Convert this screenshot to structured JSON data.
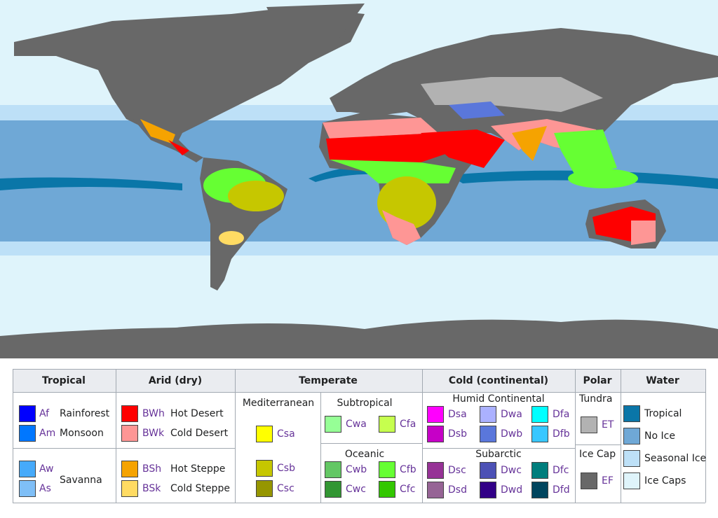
{
  "legend": {
    "tropical": {
      "title": "Tropical",
      "items": [
        {
          "code": "Af",
          "label": "Rainforest",
          "color": "#0000fe"
        },
        {
          "code": "Am",
          "label": "Monsoon",
          "color": "#0077ff"
        },
        {
          "code": "Aw",
          "color": "#46aafa"
        },
        {
          "code": "As",
          "color": "#7fbff7"
        }
      ],
      "savanna": "Savanna"
    },
    "arid": {
      "title": "Arid (dry)",
      "items": [
        {
          "code": "BWh",
          "label": "Hot Desert",
          "color": "#fe0000"
        },
        {
          "code": "BWk",
          "label": "Cold Desert",
          "color": "#fe9695"
        },
        {
          "code": "BSh",
          "label": "Hot Steppe",
          "color": "#f5a301"
        },
        {
          "code": "BSk",
          "label": "Cold Steppe",
          "color": "#ffdb63"
        }
      ]
    },
    "temperate": {
      "title": "Temperate",
      "mediterranean": {
        "title": "Mediterranean",
        "items": [
          {
            "code": "Csa",
            "color": "#ffff00"
          },
          {
            "code": "Csb",
            "color": "#c6c700"
          },
          {
            "code": "Csc",
            "color": "#969600"
          }
        ]
      },
      "subtropical": {
        "title": "Subtropical",
        "items": [
          {
            "code": "Cwa",
            "color": "#96ff96"
          },
          {
            "code": "Cfa",
            "color": "#c6ff4e"
          }
        ]
      },
      "oceanic": {
        "title": "Oceanic",
        "items": [
          {
            "code": "Cwb",
            "color": "#63c764"
          },
          {
            "code": "Cfb",
            "color": "#66ff33"
          },
          {
            "code": "Cwc",
            "color": "#329633"
          },
          {
            "code": "Cfc",
            "color": "#33c701"
          }
        ]
      }
    },
    "cold": {
      "title": "Cold (continental)",
      "humid_continental": {
        "title": "Humid Continental",
        "items": [
          {
            "code": "Dsa",
            "color": "#ff00fe"
          },
          {
            "code": "Dwa",
            "color": "#abb1ff"
          },
          {
            "code": "Dfa",
            "color": "#00ffff"
          },
          {
            "code": "Dsb",
            "color": "#c600c7"
          },
          {
            "code": "Dwb",
            "color": "#5a77db"
          },
          {
            "code": "Dfb",
            "color": "#38c7ff"
          }
        ]
      },
      "subarctic": {
        "title": "Subarctic",
        "items": [
          {
            "code": "Dsc",
            "color": "#963296"
          },
          {
            "code": "Dwc",
            "color": "#4c51b5"
          },
          {
            "code": "Dfc",
            "color": "#007e7d"
          },
          {
            "code": "Dsd",
            "color": "#966495"
          },
          {
            "code": "Dwd",
            "color": "#320087"
          },
          {
            "code": "Dfd",
            "color": "#00455e"
          }
        ]
      }
    },
    "polar": {
      "title": "Polar",
      "tundra": {
        "title": "Tundra",
        "items": [
          {
            "code": "ET",
            "color": "#b2b2b2"
          }
        ]
      },
      "ice_cap": {
        "title": "Ice Cap",
        "items": [
          {
            "code": "EF",
            "color": "#686868"
          }
        ]
      }
    },
    "water": {
      "title": "Water",
      "items": [
        {
          "label": "Tropical",
          "color": "#0a76a8"
        },
        {
          "label": "No Ice",
          "color": "#6fa8d6"
        },
        {
          "label": "Seasonal Ice",
          "color": "#bde0f7"
        },
        {
          "label": "Ice Caps",
          "color": "#dff4fb"
        }
      ]
    }
  }
}
